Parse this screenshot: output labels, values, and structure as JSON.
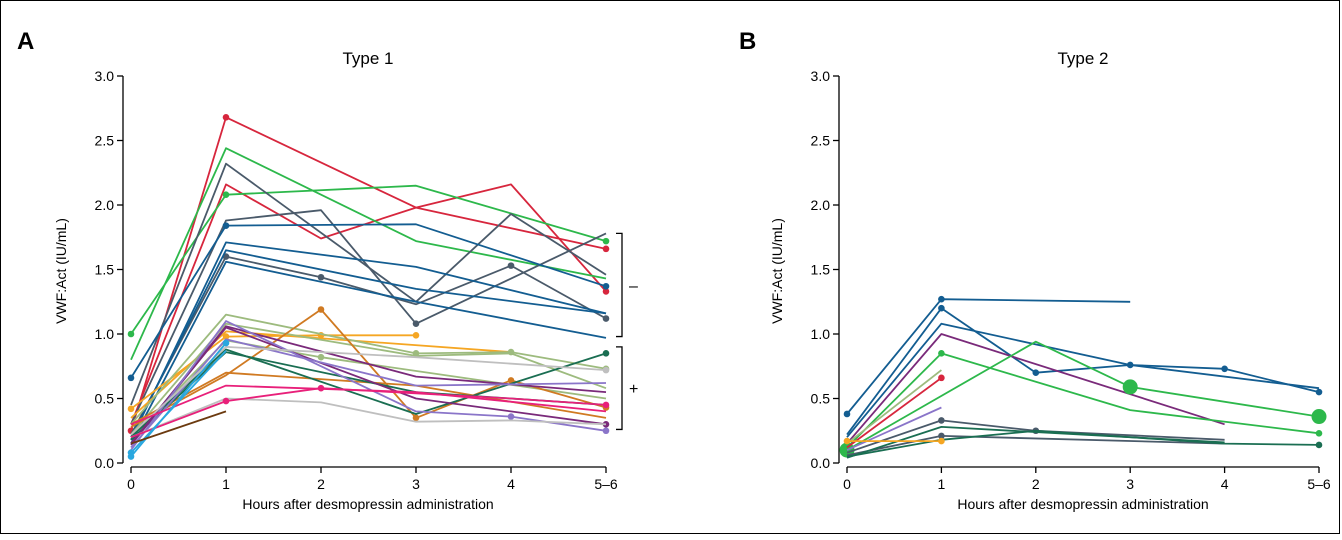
{
  "chart_data": [
    {
      "panel": "A",
      "type": "line",
      "title": "Type 1",
      "xlabel": "Hours after desmopressin administration",
      "ylabel": "VWF:Act (IU/mL)",
      "x_categories": [
        "0",
        "1",
        "2",
        "3",
        "4",
        "5–6"
      ],
      "ylim": [
        0,
        3.0
      ],
      "y_ticks": [
        "0.0",
        "0.5",
        "1.0",
        "1.5",
        "2.0",
        "2.5",
        "3.0"
      ],
      "grid": false,
      "brackets": [
        {
          "label": "–",
          "y_range": [
            0.98,
            1.78
          ]
        },
        {
          "label": "+",
          "y_range": [
            0.26,
            0.9
          ]
        }
      ],
      "series": [
        {
          "color": "#d7263d",
          "points": [
            [
              0,
              0.25
            ],
            [
              1,
              2.68
            ],
            [
              3,
              1.98
            ],
            [
              5,
              1.66
            ]
          ],
          "markers": [
            0,
            1,
            3,
            5
          ]
        },
        {
          "color": "#d7263d",
          "points": [
            [
              0,
              0.3
            ],
            [
              1,
              2.16
            ],
            [
              2,
              1.74
            ],
            [
              3,
              1.98
            ],
            [
              4,
              2.16
            ],
            [
              5,
              1.33
            ]
          ],
          "markers": [
            5
          ]
        },
        {
          "color": "#2db84b",
          "points": [
            [
              0,
              0.8
            ],
            [
              1,
              2.44
            ],
            [
              3,
              1.72
            ],
            [
              5,
              1.43
            ]
          ],
          "markers": []
        },
        {
          "color": "#2db84b",
          "points": [
            [
              0,
              1.0
            ],
            [
              1,
              2.08
            ],
            [
              3,
              2.15
            ],
            [
              5,
              1.72
            ]
          ],
          "markers": [
            0,
            1,
            3,
            5
          ]
        },
        {
          "color": "#4a5a6a",
          "points": [
            [
              0,
              0.45
            ],
            [
              1,
              2.32
            ],
            [
              3,
              1.25
            ],
            [
              4,
              1.93
            ],
            [
              5,
              1.46
            ]
          ],
          "markers": []
        },
        {
          "color": "#4a5a6a",
          "points": [
            [
              0,
              0.3
            ],
            [
              1,
              1.88
            ],
            [
              2,
              1.96
            ],
            [
              3,
              1.08
            ],
            [
              5,
              1.78
            ]
          ],
          "markers": [
            3
          ]
        },
        {
          "color": "#4a5a6a",
          "points": [
            [
              0,
              0.22
            ],
            [
              1,
              1.6
            ],
            [
              2,
              1.44
            ],
            [
              3,
              1.23
            ],
            [
              4,
              1.53
            ],
            [
              5,
              1.12
            ]
          ],
          "markers": [
            1,
            2,
            4,
            5
          ]
        },
        {
          "color": "#135d91",
          "points": [
            [
              0,
              0.66
            ],
            [
              1,
              1.84
            ],
            [
              3,
              1.85
            ],
            [
              5,
              1.37
            ]
          ],
          "markers": [
            0,
            1,
            3,
            5
          ]
        },
        {
          "color": "#135d91",
          "points": [
            [
              0,
              0.18
            ],
            [
              1,
              1.71
            ],
            [
              3,
              1.52
            ],
            [
              5,
              1.16
            ]
          ],
          "markers": []
        },
        {
          "color": "#135d91",
          "points": [
            [
              0,
              0.2
            ],
            [
              1,
              1.65
            ],
            [
              3,
              1.35
            ],
            [
              5,
              1.16
            ]
          ],
          "markers": []
        },
        {
          "color": "#135d91",
          "points": [
            [
              0,
              0.15
            ],
            [
              1,
              1.56
            ],
            [
              3,
              1.25
            ],
            [
              5,
              0.97
            ]
          ],
          "markers": []
        },
        {
          "color": "#f5a623",
          "points": [
            [
              0,
              0.42
            ],
            [
              1,
              0.98
            ],
            [
              2,
              0.99
            ],
            [
              3,
              0.99
            ]
          ],
          "markers": [
            0,
            1,
            2,
            3
          ]
        },
        {
          "color": "#f5a623",
          "points": [
            [
              0,
              0.35
            ],
            [
              1,
              1.02
            ],
            [
              4,
              0.86
            ]
          ],
          "markers": []
        },
        {
          "color": "#9dbb7e",
          "points": [
            [
              0,
              0.3
            ],
            [
              1,
              1.15
            ],
            [
              3,
              0.85
            ],
            [
              4,
              0.86
            ],
            [
              5,
              0.73
            ]
          ],
          "markers": [
            2,
            3,
            4,
            5
          ]
        },
        {
          "color": "#9dbb7e",
          "points": [
            [
              0,
              0.22
            ],
            [
              1,
              1.08
            ],
            [
              3,
              0.83
            ],
            [
              4,
              0.85
            ],
            [
              5,
              0.58
            ]
          ],
          "markers": [
            5
          ]
        },
        {
          "color": "#9dbb7e",
          "points": [
            [
              0,
              0.2
            ],
            [
              1,
              0.95
            ],
            [
              2,
              0.82
            ],
            [
              5,
              0.5
            ]
          ],
          "markers": [
            2
          ]
        },
        {
          "color": "#d07a22",
          "points": [
            [
              0,
              0.28
            ],
            [
              1,
              0.68
            ],
            [
              2,
              1.19
            ],
            [
              3,
              0.35
            ],
            [
              4,
              0.64
            ],
            [
              5,
              0.43
            ]
          ],
          "markers": [
            2,
            3,
            4,
            5
          ]
        },
        {
          "color": "#d07a22",
          "points": [
            [
              0,
              0.3
            ],
            [
              1,
              0.7
            ],
            [
              3,
              0.6
            ],
            [
              5,
              0.35
            ]
          ],
          "markers": []
        },
        {
          "color": "#1a6e52",
          "points": [
            [
              0,
              0.2
            ],
            [
              1,
              0.88
            ],
            [
              3,
              0.38
            ],
            [
              5,
              0.85
            ]
          ],
          "markers": [
            3,
            5
          ]
        },
        {
          "color": "#1a6e52",
          "points": [
            [
              0,
              0.18
            ],
            [
              1,
              0.86
            ],
            [
              3,
              0.55
            ],
            [
              5,
              0.45
            ]
          ],
          "markers": []
        },
        {
          "color": "#7a2a7a",
          "points": [
            [
              0,
              0.15
            ],
            [
              1,
              1.06
            ],
            [
              3,
              0.67
            ],
            [
              5,
              0.55
            ]
          ],
          "markers": []
        },
        {
          "color": "#7a2a7a",
          "points": [
            [
              0,
              0.14
            ],
            [
              1,
              1.05
            ],
            [
              3,
              0.5
            ],
            [
              5,
              0.3
            ]
          ],
          "markers": [
            3
          ]
        },
        {
          "color": "#8a75c9",
          "points": [
            [
              0,
              0.1
            ],
            [
              1,
              1.1
            ],
            [
              3,
              0.4
            ],
            [
              4,
              0.36
            ],
            [
              5,
              0.25
            ]
          ],
          "markers": [
            3,
            4,
            5
          ]
        },
        {
          "color": "#8a75c9",
          "points": [
            [
              0,
              0.12
            ],
            [
              1,
              0.96
            ],
            [
              3,
              0.6
            ],
            [
              5,
              0.62
            ]
          ],
          "markers": [
            5
          ]
        },
        {
          "color": "#bfbfbf",
          "points": [
            [
              0,
              0.2
            ],
            [
              1,
              0.5
            ],
            [
              2,
              0.47
            ],
            [
              3,
              0.32
            ],
            [
              4,
              0.33
            ],
            [
              5,
              0.3
            ]
          ],
          "markers": []
        },
        {
          "color": "#bfbfbf",
          "points": [
            [
              0,
              0.22
            ],
            [
              1,
              0.9
            ],
            [
              3,
              0.82
            ],
            [
              5,
              0.72
            ]
          ],
          "markers": [
            3,
            5
          ]
        },
        {
          "color": "#e8207a",
          "points": [
            [
              0,
              0.2
            ],
            [
              1,
              0.48
            ],
            [
              2,
              0.58
            ],
            [
              4,
              0.5
            ],
            [
              5,
              0.45
            ]
          ],
          "markers": [
            1,
            2,
            4
          ]
        },
        {
          "color": "#e8207a",
          "points": [
            [
              0,
              0.3
            ],
            [
              1,
              0.6
            ],
            [
              3,
              0.55
            ],
            [
              5,
              0.4
            ]
          ],
          "markers": []
        },
        {
          "color": "#29a7df",
          "points": [
            [
              0,
              0.05
            ],
            [
              1,
              0.93
            ]
          ],
          "markers": [
            0,
            1
          ]
        },
        {
          "color": "#29a7df",
          "points": [
            [
              0,
              0.08
            ],
            [
              1,
              0.87
            ]
          ],
          "markers": [
            0
          ]
        },
        {
          "color": "#6b3a0f",
          "points": [
            [
              0,
              0.15
            ],
            [
              1,
              0.4
            ]
          ],
          "markers": []
        }
      ]
    },
    {
      "panel": "B",
      "type": "line",
      "title": "Type 2",
      "xlabel": "Hours after desmopressin administration",
      "ylabel": "VWF:Act (IU/mL)",
      "x_categories": [
        "0",
        "1",
        "2",
        "3",
        "4",
        "5–6"
      ],
      "ylim": [
        0,
        3.0
      ],
      "y_ticks": [
        "0.0",
        "0.5",
        "1.0",
        "1.5",
        "2.0",
        "2.5",
        "3.0"
      ],
      "grid": false,
      "series": [
        {
          "color": "#135d91",
          "points": [
            [
              0,
              0.38
            ],
            [
              1,
              1.27
            ],
            [
              3,
              1.25
            ]
          ],
          "markers": [
            0,
            1,
            3
          ]
        },
        {
          "color": "#135d91",
          "points": [
            [
              0,
              0.22
            ],
            [
              1,
              1.2
            ],
            [
              2,
              0.7
            ],
            [
              3,
              0.76
            ],
            [
              4,
              0.73
            ],
            [
              5,
              0.55
            ]
          ],
          "markers": [
            1,
            2,
            3,
            4,
            5
          ]
        },
        {
          "color": "#135d91",
          "points": [
            [
              0,
              0.2
            ],
            [
              1,
              1.08
            ],
            [
              3,
              0.76
            ],
            [
              5,
              0.58
            ]
          ],
          "markers": []
        },
        {
          "color": "#7a2a7a",
          "points": [
            [
              0,
              0.15
            ],
            [
              1,
              1.0
            ],
            [
              4,
              0.3
            ]
          ],
          "markers": []
        },
        {
          "color": "#2db84b",
          "points": [
            [
              0,
              0.1
            ],
            [
              2,
              0.94
            ],
            [
              3,
              0.59
            ],
            [
              5,
              0.36
            ]
          ],
          "markers": [
            0,
            2,
            3,
            5
          ],
          "marker_size": "large"
        },
        {
          "color": "#2db84b",
          "points": [
            [
              0,
              0.12
            ],
            [
              1,
              0.85
            ],
            [
              3,
              0.41
            ],
            [
              5,
              0.23
            ]
          ],
          "markers": [
            1,
            3,
            5
          ]
        },
        {
          "color": "#9dbb7e",
          "points": [
            [
              0,
              0.15
            ],
            [
              1,
              0.72
            ]
          ],
          "markers": []
        },
        {
          "color": "#d7263d",
          "points": [
            [
              0,
              0.12
            ],
            [
              1,
              0.66
            ]
          ],
          "markers": [
            1
          ]
        },
        {
          "color": "#8a75c9",
          "points": [
            [
              0,
              0.1
            ],
            [
              1,
              0.43
            ]
          ],
          "markers": []
        },
        {
          "color": "#4a5a6a",
          "points": [
            [
              0,
              0.08
            ],
            [
              1,
              0.33
            ],
            [
              2,
              0.25
            ],
            [
              4,
              0.18
            ]
          ],
          "markers": [
            1,
            2,
            4
          ]
        },
        {
          "color": "#4a5a6a",
          "points": [
            [
              0,
              0.06
            ],
            [
              1,
              0.21
            ],
            [
              4,
              0.15
            ]
          ],
          "markers": [
            1
          ]
        },
        {
          "color": "#1a6e52",
          "points": [
            [
              0,
              0.05
            ],
            [
              1,
              0.18
            ],
            [
              2,
              0.25
            ],
            [
              4,
              0.15
            ],
            [
              5,
              0.14
            ]
          ],
          "markers": [
            4,
            5
          ]
        },
        {
          "color": "#1a6e52",
          "points": [
            [
              0,
              0.04
            ],
            [
              1,
              0.28
            ],
            [
              4,
              0.16
            ]
          ],
          "markers": []
        },
        {
          "color": "#f5a623",
          "points": [
            [
              0,
              0.17
            ],
            [
              1,
              0.17
            ]
          ],
          "markers": [
            0,
            1
          ]
        }
      ]
    }
  ]
}
